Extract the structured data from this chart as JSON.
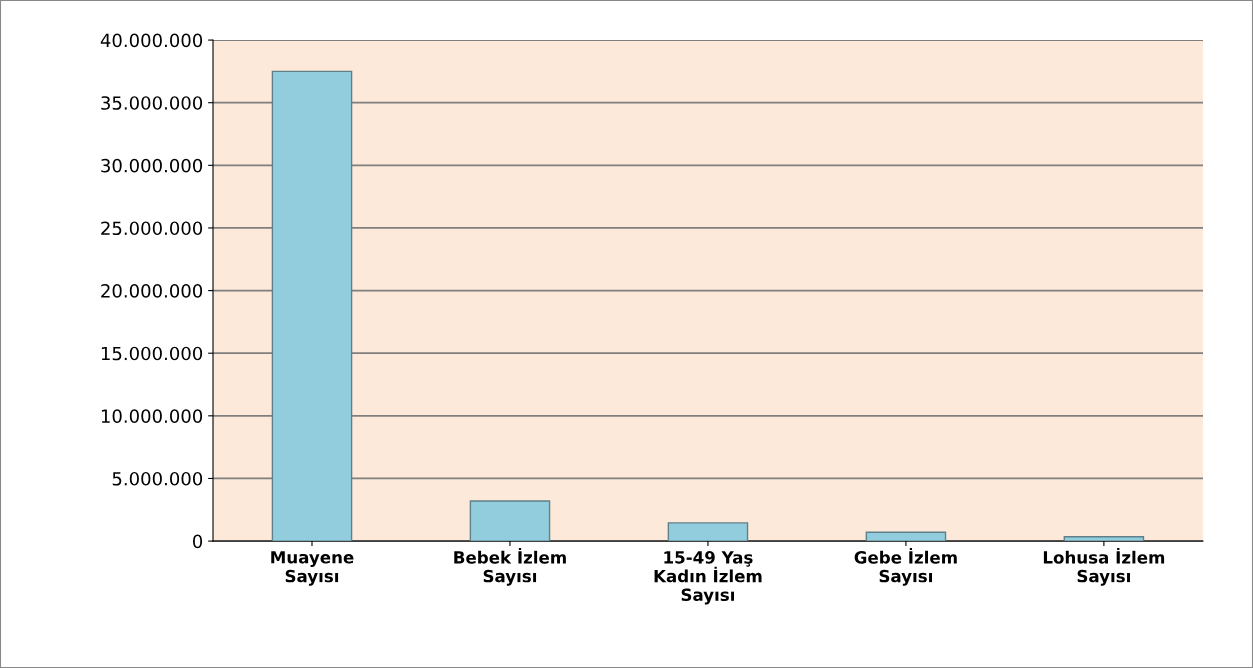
{
  "chart_data": {
    "type": "bar",
    "categories": [
      "Muayene\nSayısı",
      "Bebek İzlem\nSayısı",
      "15-49 Yaş\nKadın İzlem\nSayısı",
      "Gebe İzlem\nSayısı",
      "Lohusa İzlem\nSayısı"
    ],
    "values": [
      37500000,
      3200000,
      1450000,
      700000,
      350000
    ],
    "color": "#92cddd",
    "ylim": [
      0,
      40000000
    ],
    "yticks": [
      {
        "value": 0,
        "label": "0"
      },
      {
        "value": 5000000,
        "label": "5.000.000"
      },
      {
        "value": 10000000,
        "label": "10.000.000"
      },
      {
        "value": 15000000,
        "label": "15.000.000"
      },
      {
        "value": 20000000,
        "label": "20.000.000"
      },
      {
        "value": 25000000,
        "label": "25.000.000"
      },
      {
        "value": 30000000,
        "label": "30.000.000"
      },
      {
        "value": 35000000,
        "label": "35.000.000"
      },
      {
        "value": 40000000,
        "label": "40.000.000"
      }
    ],
    "grid": "y"
  }
}
